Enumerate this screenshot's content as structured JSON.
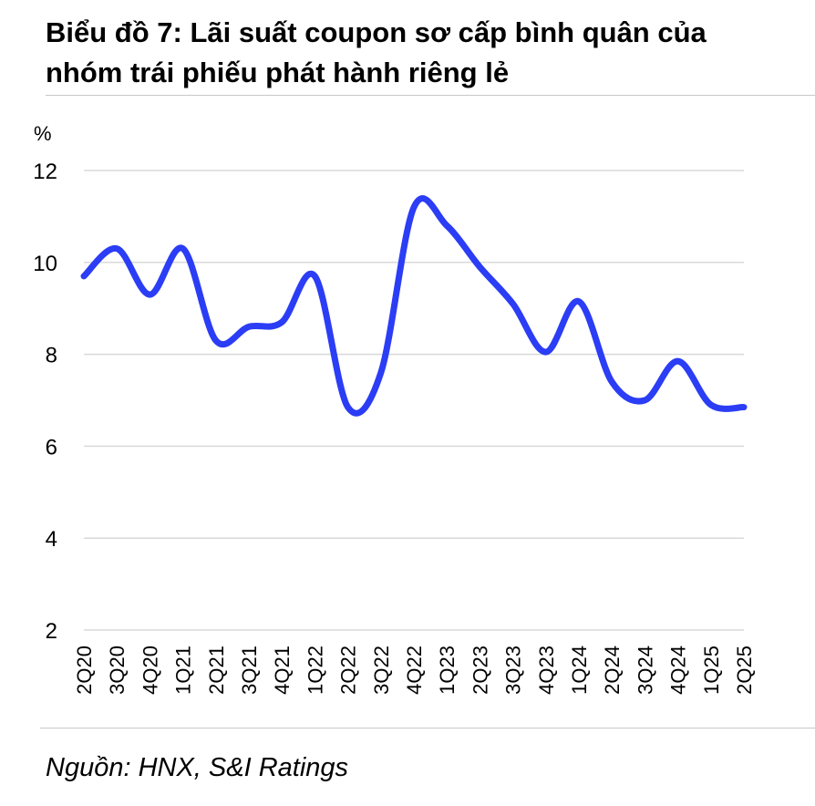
{
  "header": {
    "title_line1": "Biểu đồ 7: Lãi suất coupon sơ cấp bình quân của",
    "title_line2": "nhóm trái phiếu phát hành riêng lẻ"
  },
  "footer": {
    "source": "Nguồn: HNX, S&I Ratings"
  },
  "colors": {
    "line": "#2b3df5",
    "grid": "#d9d9d9",
    "rule": "#c8c8c8"
  },
  "chart_data": {
    "type": "line",
    "title": "Biểu đồ 7: Lãi suất coupon sơ cấp bình quân của nhóm trái phiếu phát hành riêng lẻ",
    "xlabel": "",
    "ylabel": "%",
    "ylim": [
      2,
      12
    ],
    "yticks": [
      2,
      4,
      6,
      8,
      10,
      12
    ],
    "grid": true,
    "legend": "none",
    "categories": [
      "2Q20",
      "3Q20",
      "4Q20",
      "1Q21",
      "2Q21",
      "3Q21",
      "4Q21",
      "1Q22",
      "2Q22",
      "3Q22",
      "4Q22",
      "1Q23",
      "2Q23",
      "3Q23",
      "4Q23",
      "1Q24",
      "2Q24",
      "3Q24",
      "4Q24",
      "1Q25",
      "2Q25"
    ],
    "series": [
      {
        "values": [
          9.7,
          10.3,
          9.3,
          10.3,
          8.3,
          8.6,
          8.7,
          9.7,
          6.85,
          7.6,
          11.2,
          10.8,
          9.9,
          9.1,
          8.05,
          9.15,
          7.4,
          7.0,
          7.85,
          6.9,
          6.85
        ]
      }
    ]
  }
}
